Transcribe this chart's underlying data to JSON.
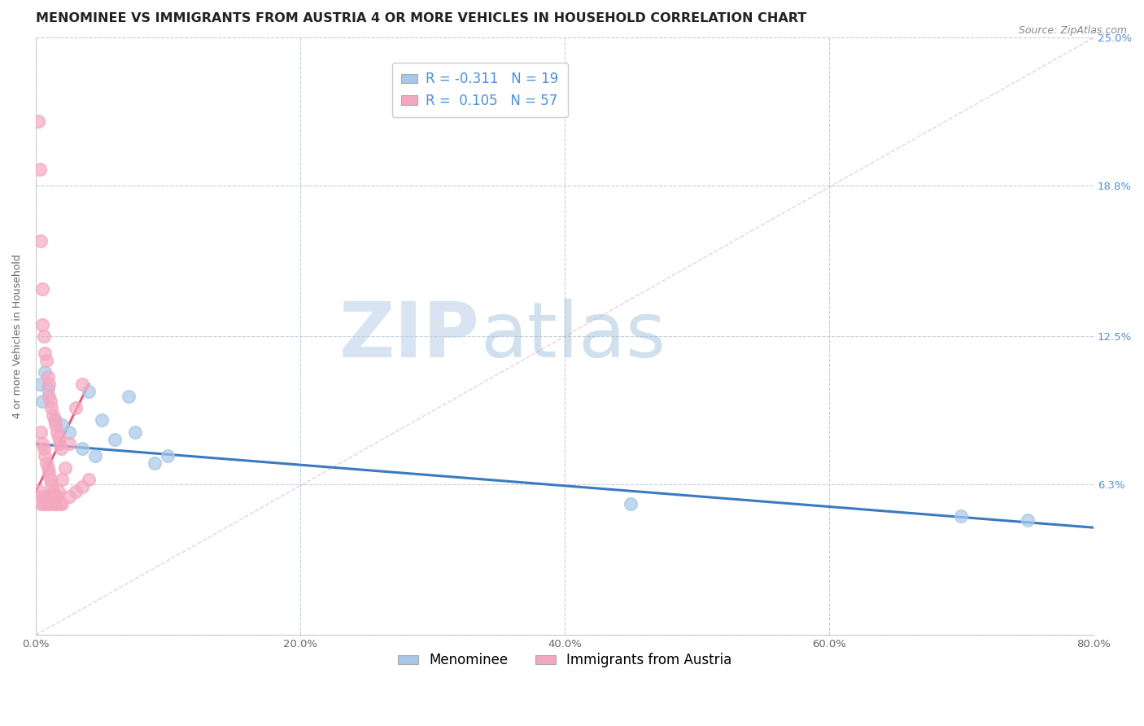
{
  "title": "MENOMINEE VS IMMIGRANTS FROM AUSTRIA 4 OR MORE VEHICLES IN HOUSEHOLD CORRELATION CHART",
  "source": "Source: ZipAtlas.com",
  "ylabel": "4 or more Vehicles in Household",
  "xmin": 0.0,
  "xmax": 80.0,
  "ymin": 0.0,
  "ymax": 25.0,
  "yticks": [
    0.0,
    6.3,
    12.5,
    18.8,
    25.0
  ],
  "xticks": [
    0.0,
    20.0,
    40.0,
    60.0,
    80.0
  ],
  "menominee_color": "#a8c8e8",
  "austria_color": "#f4a8c0",
  "menominee_scatter": [
    [
      0.3,
      10.5
    ],
    [
      0.5,
      9.8
    ],
    [
      0.7,
      11.0
    ],
    [
      0.9,
      10.3
    ],
    [
      1.5,
      9.0
    ],
    [
      2.0,
      8.8
    ],
    [
      4.0,
      10.2
    ],
    [
      7.0,
      10.0
    ],
    [
      2.5,
      8.5
    ],
    [
      3.5,
      7.8
    ],
    [
      4.5,
      7.5
    ],
    [
      5.0,
      9.0
    ],
    [
      6.0,
      8.2
    ],
    [
      7.5,
      8.5
    ],
    [
      9.0,
      7.2
    ],
    [
      10.0,
      7.5
    ],
    [
      45.0,
      5.5
    ],
    [
      70.0,
      5.0
    ],
    [
      75.0,
      4.8
    ]
  ],
  "austria_scatter": [
    [
      0.2,
      21.5
    ],
    [
      0.3,
      19.5
    ],
    [
      0.4,
      16.5
    ],
    [
      0.5,
      14.5
    ],
    [
      0.5,
      13.0
    ],
    [
      0.6,
      12.5
    ],
    [
      0.7,
      11.8
    ],
    [
      0.8,
      11.5
    ],
    [
      0.9,
      10.8
    ],
    [
      1.0,
      10.5
    ],
    [
      1.0,
      10.0
    ],
    [
      1.1,
      9.8
    ],
    [
      1.2,
      9.5
    ],
    [
      1.3,
      9.2
    ],
    [
      1.4,
      9.0
    ],
    [
      1.5,
      8.8
    ],
    [
      1.6,
      8.5
    ],
    [
      1.7,
      8.3
    ],
    [
      1.8,
      8.0
    ],
    [
      1.9,
      7.8
    ],
    [
      0.4,
      8.5
    ],
    [
      0.5,
      8.0
    ],
    [
      0.6,
      7.8
    ],
    [
      0.7,
      7.5
    ],
    [
      0.8,
      7.2
    ],
    [
      0.9,
      7.0
    ],
    [
      1.0,
      6.8
    ],
    [
      1.1,
      6.5
    ],
    [
      1.2,
      6.3
    ],
    [
      1.3,
      6.0
    ],
    [
      1.4,
      5.8
    ],
    [
      1.5,
      5.5
    ],
    [
      1.6,
      5.8
    ],
    [
      1.7,
      6.0
    ],
    [
      1.8,
      5.5
    ],
    [
      2.0,
      6.5
    ],
    [
      2.2,
      7.0
    ],
    [
      2.5,
      8.0
    ],
    [
      3.0,
      9.5
    ],
    [
      3.5,
      10.5
    ],
    [
      0.3,
      6.0
    ],
    [
      0.4,
      5.5
    ],
    [
      0.5,
      5.8
    ],
    [
      0.6,
      5.5
    ],
    [
      0.7,
      5.8
    ],
    [
      0.8,
      5.5
    ],
    [
      0.9,
      5.8
    ],
    [
      1.0,
      5.5
    ],
    [
      1.1,
      5.8
    ],
    [
      1.2,
      5.5
    ],
    [
      1.3,
      5.8
    ],
    [
      1.5,
      5.5
    ],
    [
      2.0,
      5.5
    ],
    [
      2.5,
      5.8
    ],
    [
      3.0,
      6.0
    ],
    [
      3.5,
      6.2
    ],
    [
      4.0,
      6.5
    ]
  ],
  "menominee_line_color": "#3a7abf",
  "austria_line_color": "#e06080",
  "watermark_zip": "ZIP",
  "watermark_atlas": "atlas",
  "background_color": "#ffffff",
  "grid_color": "#c0d0e0",
  "title_color": "#222222",
  "axis_label_color": "#666666",
  "right_tick_color": "#5090d0",
  "source_color": "#888888",
  "title_fontsize": 11.5,
  "axis_fontsize": 9,
  "tick_fontsize": 9.5,
  "legend_fontsize": 12
}
